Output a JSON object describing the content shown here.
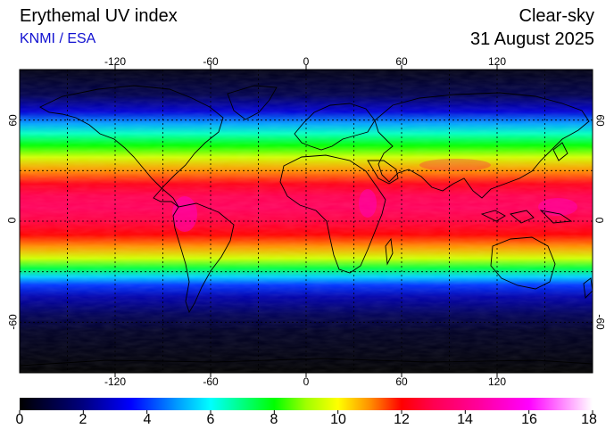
{
  "header": {
    "title": "Erythemal UV index",
    "source": "KNMI / ESA",
    "condition": "Clear-sky",
    "date": "31 August 2025"
  },
  "map": {
    "projection": "equirectangular",
    "lon_range": [
      -180,
      180
    ],
    "lat_range": [
      -90,
      90
    ],
    "lon_ticks": [
      "-120",
      "-60",
      "0",
      "60",
      "120"
    ],
    "lat_ticks": [
      "60",
      "0",
      "-60"
    ],
    "gridlines": "dashed, every 30 degrees",
    "max_uv_zone": "tropics near 10N"
  },
  "colorbar": {
    "min": 0,
    "max": 18,
    "labels": [
      "0",
      "2",
      "4",
      "6",
      "8",
      "10",
      "12",
      "14",
      "16",
      "18"
    ],
    "stops": [
      {
        "v": 0,
        "c": "#000000"
      },
      {
        "v": 2,
        "c": "#000080"
      },
      {
        "v": 3.5,
        "c": "#0000ff"
      },
      {
        "v": 5,
        "c": "#00a0ff"
      },
      {
        "v": 6,
        "c": "#00ffff"
      },
      {
        "v": 7,
        "c": "#00ff80"
      },
      {
        "v": 8,
        "c": "#00ff00"
      },
      {
        "v": 9,
        "c": "#a0ff00"
      },
      {
        "v": 10,
        "c": "#ffff00"
      },
      {
        "v": 11,
        "c": "#ff9000"
      },
      {
        "v": 12,
        "c": "#ff0000"
      },
      {
        "v": 13,
        "c": "#ff0050"
      },
      {
        "v": 14.5,
        "c": "#ff00a0"
      },
      {
        "v": 16,
        "c": "#ff00ff"
      },
      {
        "v": 17,
        "c": "#ff80ff"
      },
      {
        "v": 18,
        "c": "#ffffff"
      }
    ]
  }
}
